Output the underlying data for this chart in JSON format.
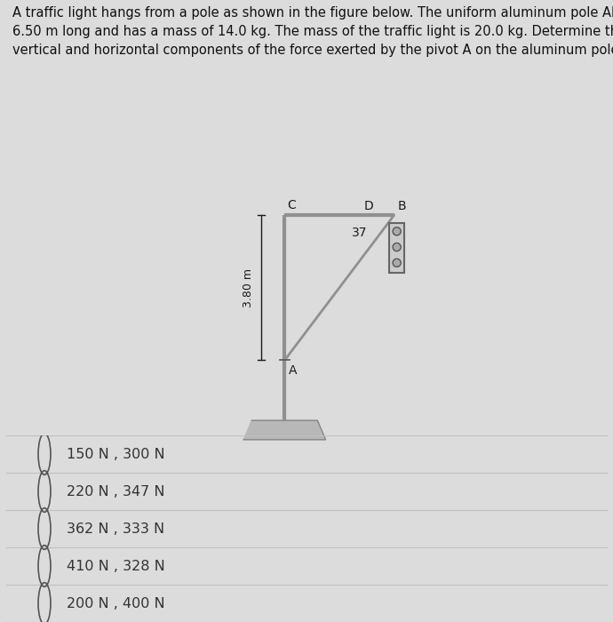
{
  "title_text": "A traffic light hangs from a pole as shown in the figure below. The uniform aluminum pole AB is\n6.50 m long and has a mass of 14.0 kg. The mass of the traffic light is 20.0 kg. Determine the\nvertical and horizontal components of the force exerted by the pivot A on the aluminum pole.",
  "title_fontsize": 10.5,
  "bg_color": "#dcdcdc",
  "choices_bg": "#e8e8e8",
  "choices": [
    "150 N , 300 N",
    "220 N , 347 N",
    "362 N , 333 N",
    "410 N , 328 N",
    "200 N , 400 N"
  ],
  "choice_fontsize": 11.5,
  "pole_color": "#909090",
  "label_color": "#1a1a1a",
  "angle_label": "37",
  "dim_label": "3.80 m",
  "lw_pole": 3.0,
  "lw_cable": 2.0,
  "lw_wire": 1.5
}
